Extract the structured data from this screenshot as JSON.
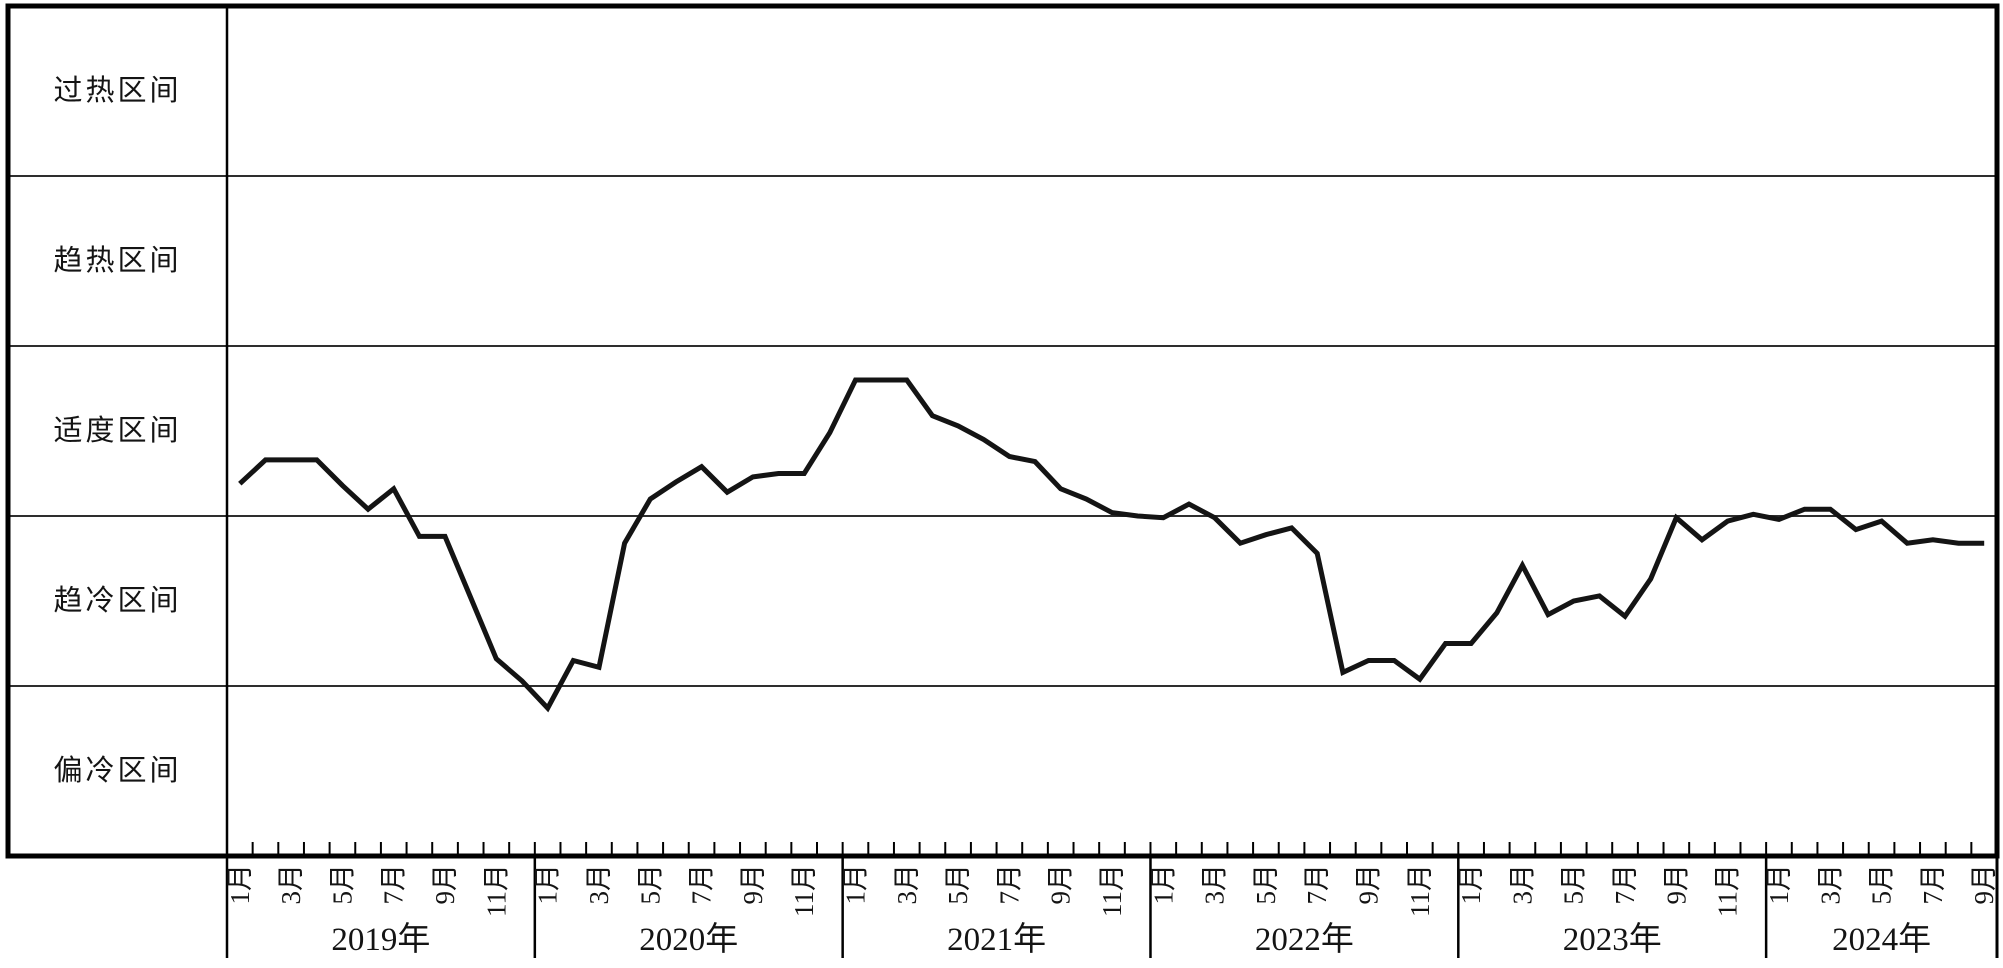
{
  "zone_labels": [
    "过热区间",
    "趋热区间",
    "适度区间",
    "趋冷区间",
    "偏冷区间"
  ],
  "x_axis": {
    "years": [
      {
        "label": "2019年",
        "months": 12
      },
      {
        "label": "2020年",
        "months": 12
      },
      {
        "label": "2021年",
        "months": 12
      },
      {
        "label": "2022年",
        "months": 12
      },
      {
        "label": "2023年",
        "months": 12
      },
      {
        "label": "2024年",
        "months": 9
      }
    ],
    "labeled_months": [
      1,
      3,
      5,
      7,
      9,
      11
    ],
    "month_suffix": "月"
  },
  "chart_data": {
    "type": "line",
    "title": "",
    "legend": "none",
    "grid": "horizontal zone-boundary lines only",
    "ylim": [
      0,
      5
    ],
    "value_scale": "zone units: 0 = chart bottom, 1 = 偏冷/趋冷 boundary, 2 = 趋冷/适度 boundary, 3 = 适度/趋热 boundary, 4 = 趋热/过热 boundary, 5 = chart top",
    "zone_bands_top_to_bottom": [
      "过热区间",
      "趋热区间",
      "适度区间",
      "趋冷区间",
      "偏冷区间"
    ],
    "x": [
      "2019-01",
      "2019-02",
      "2019-03",
      "2019-04",
      "2019-05",
      "2019-06",
      "2019-07",
      "2019-08",
      "2019-09",
      "2019-10",
      "2019-11",
      "2019-12",
      "2020-01",
      "2020-02",
      "2020-03",
      "2020-04",
      "2020-05",
      "2020-06",
      "2020-07",
      "2020-08",
      "2020-09",
      "2020-10",
      "2020-11",
      "2020-12",
      "2021-01",
      "2021-02",
      "2021-03",
      "2021-04",
      "2021-05",
      "2021-06",
      "2021-07",
      "2021-08",
      "2021-09",
      "2021-10",
      "2021-11",
      "2021-12",
      "2022-01",
      "2022-02",
      "2022-03",
      "2022-04",
      "2022-05",
      "2022-06",
      "2022-07",
      "2022-08",
      "2022-09",
      "2022-10",
      "2022-11",
      "2022-12",
      "2023-01",
      "2023-02",
      "2023-03",
      "2023-04",
      "2023-05",
      "2023-06",
      "2023-07",
      "2023-08",
      "2023-09",
      "2023-10",
      "2023-11",
      "2023-12",
      "2024-01",
      "2024-02",
      "2024-03",
      "2024-04",
      "2024-05",
      "2024-06",
      "2024-07",
      "2024-08",
      "2024-09"
    ],
    "values": [
      2.19,
      2.33,
      2.33,
      2.33,
      2.18,
      2.04,
      2.16,
      1.88,
      1.88,
      1.52,
      1.16,
      1.03,
      0.87,
      1.15,
      1.11,
      1.84,
      2.1,
      2.2,
      2.29,
      2.14,
      2.23,
      2.25,
      2.25,
      2.49,
      2.8,
      2.8,
      2.8,
      2.59,
      2.53,
      2.45,
      2.35,
      2.32,
      2.16,
      2.1,
      2.02,
      2.0,
      1.99,
      2.07,
      1.99,
      1.84,
      1.89,
      1.93,
      1.78,
      1.08,
      1.15,
      1.15,
      1.04,
      1.25,
      1.25,
      1.43,
      1.71,
      1.42,
      1.5,
      1.53,
      1.41,
      1.63,
      1.99,
      1.86,
      1.97,
      2.01,
      1.98,
      2.04,
      2.04,
      1.92,
      1.97,
      1.84,
      1.86,
      1.84,
      1.84
    ]
  },
  "colors": {
    "line": "#141414",
    "grid": "#2e2e2e",
    "border": "#000000",
    "background": "#ffffff",
    "text": "#141414"
  }
}
